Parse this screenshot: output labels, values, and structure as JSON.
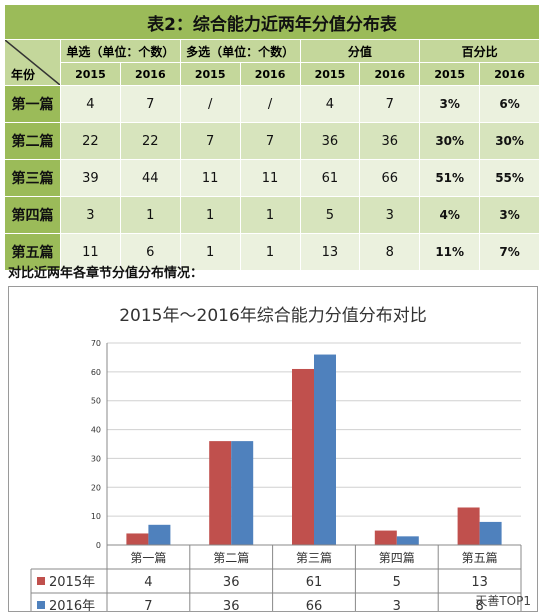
{
  "table": {
    "title": "表2：综合能力近两年分值分布表",
    "year_label": "年份",
    "groups": [
      "单选（单位：个数）",
      "多选（单位：个数）",
      "分值",
      "百分比"
    ],
    "years": [
      "2015",
      "2016"
    ],
    "rows": [
      {
        "name": "第一篇",
        "cells": [
          "4",
          "7",
          "/",
          "/",
          "4",
          "7",
          "3%",
          "6%"
        ]
      },
      {
        "name": "第二篇",
        "cells": [
          "22",
          "22",
          "7",
          "7",
          "36",
          "36",
          "30%",
          "30%"
        ]
      },
      {
        "name": "第三篇",
        "cells": [
          "39",
          "44",
          "11",
          "11",
          "61",
          "66",
          "51%",
          "55%"
        ]
      },
      {
        "name": "第四篇",
        "cells": [
          "3",
          "1",
          "1",
          "1",
          "5",
          "3",
          "4%",
          "3%"
        ]
      },
      {
        "name": "第五篇",
        "cells": [
          "11",
          "6",
          "1",
          "1",
          "13",
          "8",
          "11%",
          "7%"
        ]
      }
    ]
  },
  "caption": "对比近两年各章节分值分布情况：",
  "watermark": "天善TOP1",
  "chart_data": {
    "type": "bar",
    "title": "2015年～2016年综合能力分值分布对比",
    "categories": [
      "第一篇",
      "第二篇",
      "第三篇",
      "第四篇",
      "第五篇"
    ],
    "series": [
      {
        "name": "2015年",
        "color": "#c0504d",
        "values": [
          4,
          36,
          61,
          5,
          13
        ]
      },
      {
        "name": "2016年",
        "color": "#4f81bd",
        "values": [
          7,
          36,
          66,
          3,
          8
        ]
      }
    ],
    "ylim": [
      0,
      70
    ],
    "yticks": [
      0,
      10,
      20,
      30,
      40,
      50,
      60,
      70
    ],
    "grid": true,
    "legend": "data-table-below"
  }
}
